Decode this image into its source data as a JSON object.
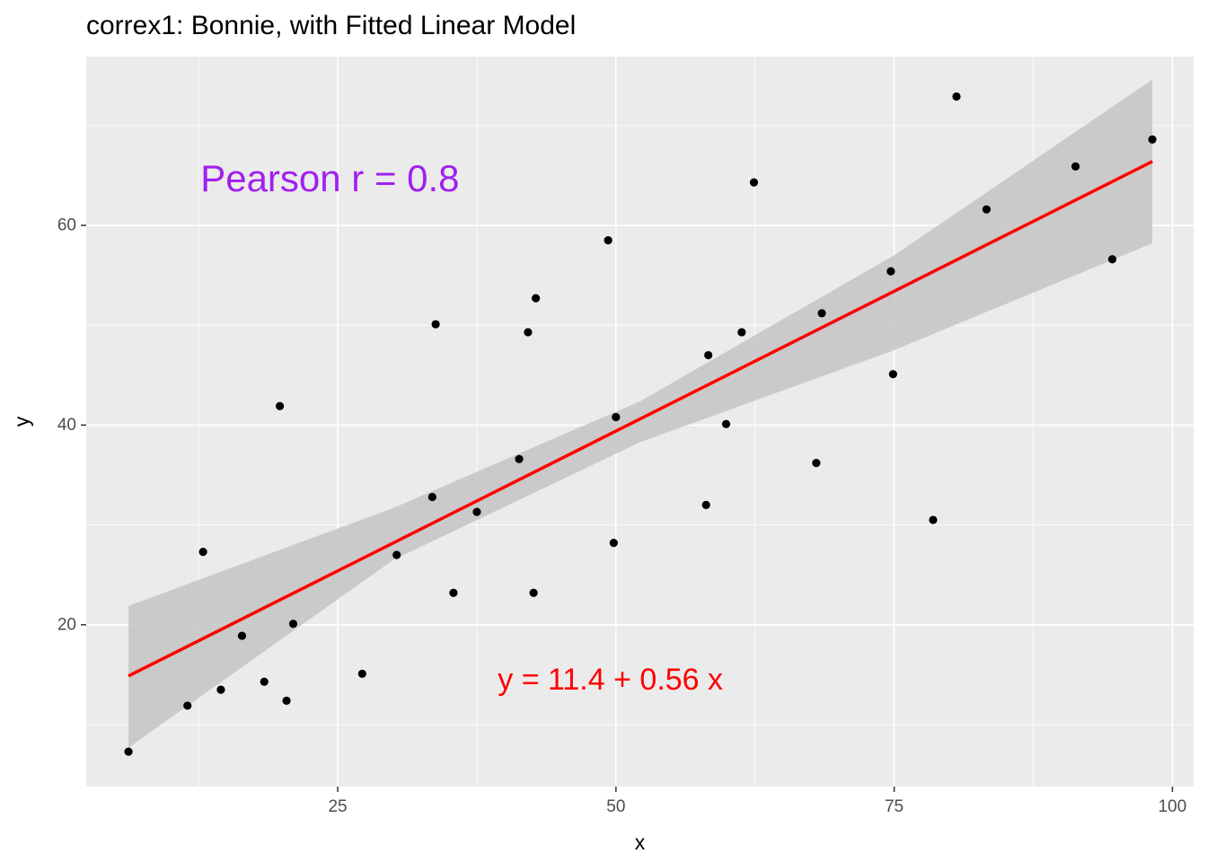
{
  "chart_data": {
    "type": "scatter",
    "title": "correx1: Bonnie, with Fitted Linear Model",
    "xlabel": "x",
    "ylabel": "y",
    "xlim": [
      2.4,
      101.9
    ],
    "ylim": [
      3.8,
      76.9
    ],
    "x_ticks": [
      25,
      50,
      75,
      100
    ],
    "y_ticks": [
      20,
      40,
      60
    ],
    "grid": true,
    "points": [
      {
        "x": 6.2,
        "y": 7.3
      },
      {
        "x": 11.5,
        "y": 11.9
      },
      {
        "x": 12.9,
        "y": 27.3
      },
      {
        "x": 14.5,
        "y": 13.5
      },
      {
        "x": 16.4,
        "y": 18.9
      },
      {
        "x": 18.4,
        "y": 14.3
      },
      {
        "x": 19.8,
        "y": 41.9
      },
      {
        "x": 20.4,
        "y": 12.4
      },
      {
        "x": 21.0,
        "y": 20.1
      },
      {
        "x": 27.2,
        "y": 15.1
      },
      {
        "x": 30.3,
        "y": 27.0
      },
      {
        "x": 33.5,
        "y": 32.8
      },
      {
        "x": 33.8,
        "y": 50.1
      },
      {
        "x": 35.4,
        "y": 23.2
      },
      {
        "x": 37.5,
        "y": 31.3
      },
      {
        "x": 41.3,
        "y": 36.6
      },
      {
        "x": 42.1,
        "y": 49.3
      },
      {
        "x": 42.6,
        "y": 23.2
      },
      {
        "x": 42.8,
        "y": 52.7
      },
      {
        "x": 49.3,
        "y": 58.5
      },
      {
        "x": 49.8,
        "y": 28.2
      },
      {
        "x": 50.0,
        "y": 40.8
      },
      {
        "x": 58.1,
        "y": 32.0
      },
      {
        "x": 58.3,
        "y": 47.0
      },
      {
        "x": 59.9,
        "y": 40.1
      },
      {
        "x": 61.3,
        "y": 49.3
      },
      {
        "x": 62.4,
        "y": 64.3
      },
      {
        "x": 68.0,
        "y": 36.2
      },
      {
        "x": 68.5,
        "y": 51.2
      },
      {
        "x": 74.7,
        "y": 55.4
      },
      {
        "x": 74.9,
        "y": 45.1
      },
      {
        "x": 78.5,
        "y": 30.5
      },
      {
        "x": 80.6,
        "y": 72.9
      },
      {
        "x": 83.3,
        "y": 61.6
      },
      {
        "x": 91.3,
        "y": 65.9
      },
      {
        "x": 94.6,
        "y": 56.6
      },
      {
        "x": 98.2,
        "y": 68.6
      }
    ],
    "fit": {
      "intercept": 11.4,
      "slope": 0.56,
      "x_range": [
        6.2,
        98.2
      ]
    },
    "ci_band": {
      "x": [
        6.2,
        30,
        52.2,
        75,
        98.2
      ],
      "lower": [
        7.7,
        26.5,
        38.3,
        47.5,
        58.2
      ],
      "upper": [
        21.9,
        31.7,
        42.4,
        57.0,
        74.6
      ]
    },
    "annotations": [
      {
        "text": "Pearson r =  0.8",
        "x": 24.3,
        "y": 64.7,
        "color": "#a020f0"
      },
      {
        "text": "y =  11.4  +  0.56 x",
        "x": 49.5,
        "y": 14.5,
        "color": "#ff0000"
      }
    ],
    "colors": {
      "panel": "#ebebeb",
      "grid": "#ffffff",
      "points": "#000000",
      "fit_line": "#ff0000",
      "ci_band": "#c4c4c4"
    }
  }
}
